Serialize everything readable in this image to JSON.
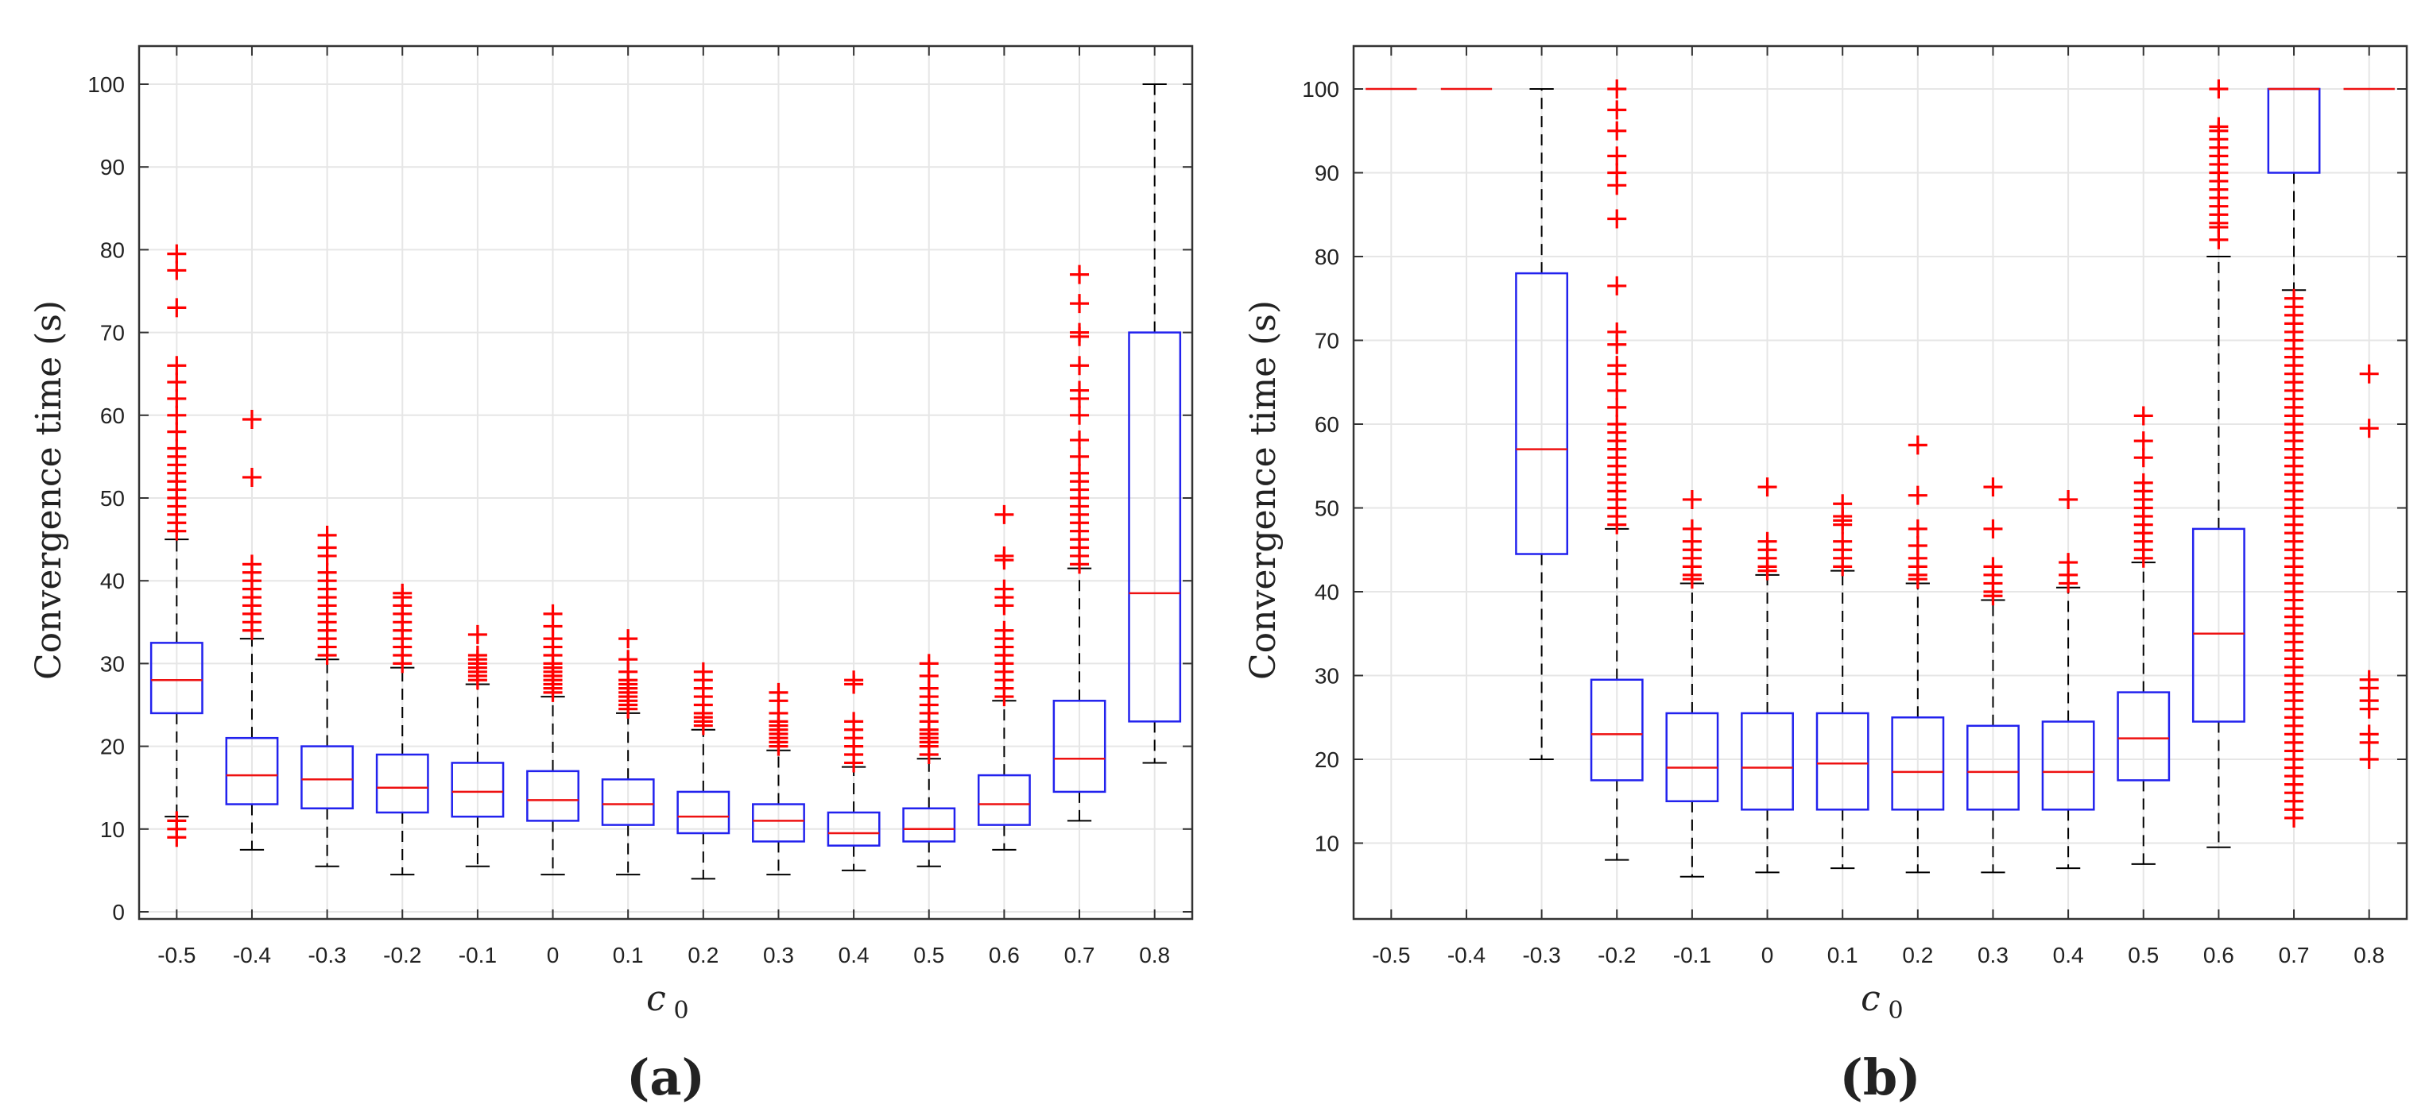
{
  "chart_data": [
    {
      "panel_label": "(a)",
      "type": "box",
      "xlabel_main": "c",
      "xlabel_sub": "0",
      "ylabel": "Convergence time (s)",
      "ylim": [
        0,
        105
      ],
      "yticks": [
        "0",
        "10",
        "20",
        "30",
        "40",
        "50",
        "60",
        "70",
        "80",
        "90",
        "100"
      ],
      "categories": [
        "-0.5",
        "-0.4",
        "-0.3",
        "-0.2",
        "-0.1",
        "0",
        "0.1",
        "0.2",
        "0.3",
        "0.4",
        "0.5",
        "0.6",
        "0.7",
        "0.8"
      ],
      "grid": true,
      "boxes": [
        {
          "wlo": 11.5,
          "q1": 24,
          "med": 28,
          "q3": 32.5,
          "whi": 45,
          "outliers": [
            9,
            10,
            11,
            46,
            47,
            48,
            49,
            50,
            51,
            52,
            53,
            54,
            55,
            56,
            58,
            60,
            62,
            64,
            66,
            73,
            77.5,
            79.5
          ]
        },
        {
          "wlo": 7.5,
          "q1": 13,
          "med": 16.5,
          "q3": 21,
          "whi": 33,
          "outliers": [
            34,
            35,
            36,
            37,
            38,
            39,
            40,
            41,
            42,
            52.5,
            59.5
          ]
        },
        {
          "wlo": 5.5,
          "q1": 12.5,
          "med": 16,
          "q3": 20,
          "whi": 30.5,
          "outliers": [
            31,
            32,
            33,
            34,
            35,
            36,
            37,
            38,
            39,
            40,
            41,
            43,
            44,
            45.5
          ]
        },
        {
          "wlo": 4.5,
          "q1": 12,
          "med": 15,
          "q3": 19,
          "whi": 29.5,
          "outliers": [
            30,
            31,
            32,
            33,
            34,
            35,
            36,
            37,
            38,
            38.5
          ]
        },
        {
          "wlo": 5.5,
          "q1": 11.5,
          "med": 14.5,
          "q3": 18,
          "whi": 27.5,
          "outliers": [
            28,
            28.5,
            29,
            29.5,
            30,
            30.5,
            31,
            33.5
          ]
        },
        {
          "wlo": 4.5,
          "q1": 11,
          "med": 13.5,
          "q3": 17,
          "whi": 26,
          "outliers": [
            26.5,
            27,
            27.5,
            28,
            28.5,
            29,
            29.5,
            30,
            31,
            32,
            33,
            34.5,
            36
          ]
        },
        {
          "wlo": 4.5,
          "q1": 10.5,
          "med": 13,
          "q3": 16,
          "whi": 24,
          "outliers": [
            24.5,
            25,
            25.5,
            26,
            26.5,
            27,
            27.5,
            28,
            29,
            30.5,
            33
          ]
        },
        {
          "wlo": 4,
          "q1": 9.5,
          "med": 11.5,
          "q3": 14.5,
          "whi": 22,
          "outliers": [
            22.5,
            23,
            23.5,
            24,
            25,
            26,
            27,
            28,
            29
          ]
        },
        {
          "wlo": 4.5,
          "q1": 8.5,
          "med": 11,
          "q3": 13,
          "whi": 19.5,
          "outliers": [
            20,
            20.5,
            21,
            21.5,
            22,
            22.5,
            23,
            24,
            25.5,
            26.5
          ]
        },
        {
          "wlo": 5,
          "q1": 8,
          "med": 9.5,
          "q3": 12,
          "whi": 17.5,
          "outliers": [
            18,
            19,
            20,
            21,
            22,
            23,
            27.5,
            28
          ]
        },
        {
          "wlo": 5.5,
          "q1": 8.5,
          "med": 10,
          "q3": 12.5,
          "whi": 18.5,
          "outliers": [
            19,
            20,
            20.5,
            21,
            21.5,
            22,
            23,
            24,
            25,
            26,
            27,
            28.5,
            30
          ]
        },
        {
          "wlo": 7.5,
          "q1": 10.5,
          "med": 13,
          "q3": 16.5,
          "whi": 25.5,
          "outliers": [
            26,
            27,
            28,
            29,
            30,
            31,
            32,
            33,
            34,
            37,
            38,
            39,
            42.5,
            43,
            48
          ]
        },
        {
          "wlo": 11,
          "q1": 14.5,
          "med": 18.5,
          "q3": 25.5,
          "whi": 41.5,
          "outliers": [
            42,
            43,
            44,
            45,
            46,
            47,
            48,
            49,
            50,
            51,
            52,
            53,
            55,
            57,
            60,
            62,
            63,
            66,
            69.5,
            70,
            73.5,
            77
          ]
        },
        {
          "wlo": 18,
          "q1": 23,
          "med": 38.5,
          "q3": 70,
          "whi": 100,
          "outliers": []
        }
      ]
    },
    {
      "panel_label": "(b)",
      "type": "box",
      "xlabel_main": "c",
      "xlabel_sub": "0",
      "ylabel": "Convergence time (s)",
      "ylim": [
        0,
        105
      ],
      "yticks": [
        "10",
        "20",
        "30",
        "40",
        "50",
        "60",
        "70",
        "80",
        "90",
        "100"
      ],
      "categories": [
        "-0.5",
        "-0.4",
        "-0.3",
        "-0.2",
        "-0.1",
        "0",
        "0.1",
        "0.2",
        "0.3",
        "0.4",
        "0.5",
        "0.6",
        "0.7",
        "0.8"
      ],
      "grid": true,
      "boxes": [
        {
          "wlo": 100,
          "q1": 100,
          "med": 100,
          "q3": 100,
          "whi": 100,
          "outliers": []
        },
        {
          "wlo": 100,
          "q1": 100,
          "med": 100,
          "q3": 100,
          "whi": 100,
          "outliers": []
        },
        {
          "wlo": 20,
          "q1": 44.5,
          "med": 57,
          "q3": 78,
          "whi": 100,
          "outliers": []
        },
        {
          "wlo": 8,
          "q1": 17.5,
          "med": 23,
          "q3": 29.5,
          "whi": 47.5,
          "outliers": [
            48,
            49,
            50,
            51,
            52,
            53,
            54,
            55,
            56,
            57,
            58,
            59,
            60,
            62,
            64,
            66,
            67,
            69.5,
            71,
            76.5,
            84.5,
            88.5,
            90,
            92,
            95,
            97.5,
            100
          ]
        },
        {
          "wlo": 6,
          "q1": 15,
          "med": 19,
          "q3": 25.5,
          "whi": 41,
          "outliers": [
            41.5,
            42,
            43,
            44,
            45,
            46,
            47.5,
            51
          ]
        },
        {
          "wlo": 6.5,
          "q1": 14,
          "med": 19,
          "q3": 25.5,
          "whi": 42,
          "outliers": [
            42.5,
            43,
            44,
            45,
            46,
            52.5
          ]
        },
        {
          "wlo": 7,
          "q1": 14,
          "med": 19.5,
          "q3": 25.5,
          "whi": 42.5,
          "outliers": [
            43,
            44,
            45,
            46,
            48,
            48.5,
            49,
            50.5
          ]
        },
        {
          "wlo": 6.5,
          "q1": 14,
          "med": 18.5,
          "q3": 25,
          "whi": 41,
          "outliers": [
            41.5,
            42,
            43,
            44,
            45.5,
            47.5,
            51.5,
            57.5
          ]
        },
        {
          "wlo": 6.5,
          "q1": 14,
          "med": 18.5,
          "q3": 24,
          "whi": 39,
          "outliers": [
            39.5,
            40,
            41,
            42,
            43,
            47.5,
            52.5
          ]
        },
        {
          "wlo": 7,
          "q1": 14,
          "med": 18.5,
          "q3": 24.5,
          "whi": 40.5,
          "outliers": [
            41,
            42,
            43.5,
            51
          ]
        },
        {
          "wlo": 7.5,
          "q1": 17.5,
          "med": 22.5,
          "q3": 28,
          "whi": 43.5,
          "outliers": [
            44,
            45,
            46,
            47,
            48,
            49,
            50,
            51,
            52,
            53,
            56,
            58,
            61
          ]
        },
        {
          "wlo": 9.5,
          "q1": 24.5,
          "med": 35,
          "q3": 47.5,
          "whi": 80,
          "outliers": [
            82,
            83.5,
            84,
            85,
            86,
            87,
            88,
            89,
            90,
            91,
            92,
            93,
            94,
            95,
            95.5,
            100
          ]
        },
        {
          "wlo": 76,
          "q1": 90,
          "med": 100,
          "q3": 100,
          "whi": 100,
          "outliers": [
            13,
            14,
            15,
            16,
            17,
            18,
            19,
            20,
            21,
            22,
            23,
            24,
            25,
            26,
            27,
            28,
            29,
            30,
            31,
            32,
            33,
            34,
            35,
            36,
            37,
            38,
            39,
            40,
            41,
            42,
            43,
            44,
            45,
            46,
            47,
            48,
            49,
            50,
            51,
            52,
            53,
            54,
            55,
            56,
            57,
            58,
            59,
            60,
            61,
            62,
            63,
            64,
            65,
            66,
            67,
            68,
            69,
            70,
            71,
            72,
            73,
            74,
            75
          ]
        },
        {
          "wlo": 100,
          "q1": 100,
          "med": 100,
          "q3": 100,
          "whi": 100,
          "outliers": [
            20,
            22,
            23,
            26,
            27,
            28.5,
            29.5,
            59.5,
            66
          ]
        }
      ]
    }
  ]
}
